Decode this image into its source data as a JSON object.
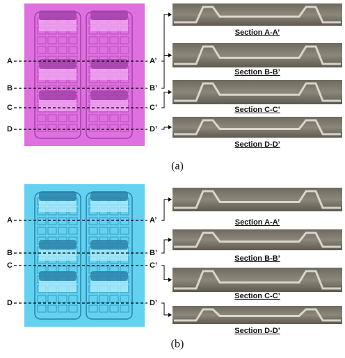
{
  "panels": [
    {
      "caption": "(a)",
      "left_labels": [
        "A",
        "B",
        "C",
        "D"
      ],
      "right_labels": [
        "A’",
        "B’",
        "C’",
        "D’"
      ],
      "sections": [
        "Section A-A’",
        "Section B-B’",
        "Section C-C’",
        "Section D-D’"
      ]
    },
    {
      "caption": "(b)",
      "left_labels": [
        "A",
        "B",
        "C",
        "D"
      ],
      "right_labels": [
        "A’",
        "B’",
        "C’",
        "D’"
      ],
      "sections": [
        "Section A-A’",
        "Section B-B’",
        "Section C-C’",
        "Section D-D’"
      ]
    }
  ]
}
